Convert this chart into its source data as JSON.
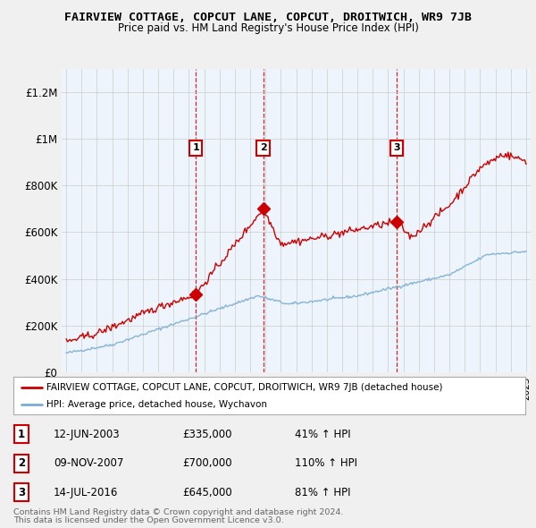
{
  "title": "FAIRVIEW COTTAGE, COPCUT LANE, COPCUT, DROITWICH, WR9 7JB",
  "subtitle": "Price paid vs. HM Land Registry's House Price Index (HPI)",
  "red_label": "FAIRVIEW COTTAGE, COPCUT LANE, COPCUT, DROITWICH, WR9 7JB (detached house)",
  "blue_label": "HPI: Average price, detached house, Wychavon",
  "footnote1": "Contains HM Land Registry data © Crown copyright and database right 2024.",
  "footnote2": "This data is licensed under the Open Government Licence v3.0.",
  "transactions": [
    {
      "num": 1,
      "date": "12-JUN-2003",
      "price": "£335,000",
      "pct": "41%",
      "direction": "↑",
      "ref": "HPI",
      "year": 2003.45,
      "value": 335000
    },
    {
      "num": 2,
      "date": "09-NOV-2007",
      "price": "£700,000",
      "pct": "110%",
      "direction": "↑",
      "ref": "HPI",
      "year": 2007.85,
      "value": 700000
    },
    {
      "num": 3,
      "date": "14-JUL-2016",
      "price": "£645,000",
      "pct": "81%",
      "direction": "↑",
      "ref": "HPI",
      "year": 2016.54,
      "value": 645000
    }
  ],
  "ylim": [
    0,
    1300000
  ],
  "yticks": [
    0,
    200000,
    400000,
    600000,
    800000,
    1000000,
    1200000
  ],
  "ytick_labels": [
    "£0",
    "£200K",
    "£400K",
    "£600K",
    "£800K",
    "£1M",
    "£1.2M"
  ],
  "bg_color": "#f0f0f0",
  "plot_bg_color": "#eef4fb",
  "grid_color": "#cccccc",
  "red_color": "#cc0000",
  "blue_color": "#7aadd4",
  "transaction_dashed_color": "#cc0000",
  "xlim_start": 1995,
  "xlim_end": 2025
}
